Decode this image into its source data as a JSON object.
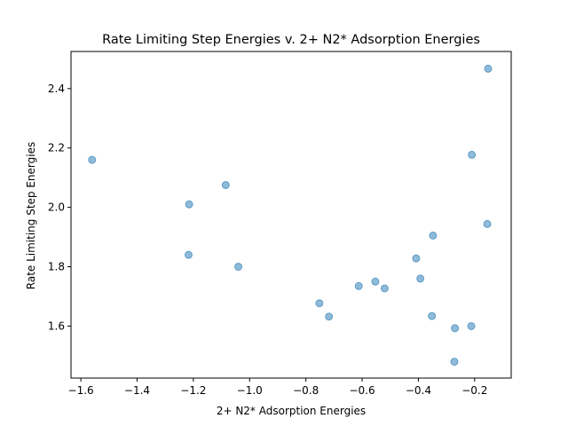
{
  "chart_data": {
    "type": "scatter",
    "title": "Rate Limiting Step Energies v. 2+ N2* Adsorption Energies",
    "xlabel": "2+ N2* Adsorption Energies",
    "ylabel": "Rate Limiting Step Energies",
    "xlim": [
      -1.635,
      -0.07
    ],
    "ylim": [
      1.425,
      2.525
    ],
    "xticks": [
      -1.6,
      -1.4,
      -1.2,
      -1.0,
      -0.8,
      -0.6,
      -0.4,
      -0.2
    ],
    "xtick_labels": [
      "−1.6",
      "−1.4",
      "−1.2",
      "−1.0",
      "−0.8",
      "−0.6",
      "−0.4",
      "−0.2"
    ],
    "yticks": [
      1.6,
      1.8,
      2.0,
      2.2,
      2.4
    ],
    "ytick_labels": [
      "1.6",
      "1.8",
      "2.0",
      "2.2",
      "2.4"
    ],
    "grid": false,
    "marker_color": "#1f77b4",
    "marker_alpha": 0.5,
    "points": [
      {
        "x": -1.56,
        "y": 2.16
      },
      {
        "x": -1.215,
        "y": 2.01
      },
      {
        "x": -1.217,
        "y": 1.84
      },
      {
        "x": -1.085,
        "y": 2.075
      },
      {
        "x": -1.04,
        "y": 1.8
      },
      {
        "x": -0.752,
        "y": 1.677
      },
      {
        "x": -0.718,
        "y": 1.632
      },
      {
        "x": -0.612,
        "y": 1.735
      },
      {
        "x": -0.553,
        "y": 1.75
      },
      {
        "x": -0.52,
        "y": 1.727
      },
      {
        "x": -0.408,
        "y": 1.828
      },
      {
        "x": -0.393,
        "y": 1.76
      },
      {
        "x": -0.348,
        "y": 1.905
      },
      {
        "x": -0.352,
        "y": 1.634
      },
      {
        "x": -0.27,
        "y": 1.593
      },
      {
        "x": -0.272,
        "y": 1.48
      },
      {
        "x": -0.21,
        "y": 2.177
      },
      {
        "x": -0.212,
        "y": 1.6
      },
      {
        "x": -0.155,
        "y": 1.944
      },
      {
        "x": -0.152,
        "y": 2.467
      }
    ]
  }
}
